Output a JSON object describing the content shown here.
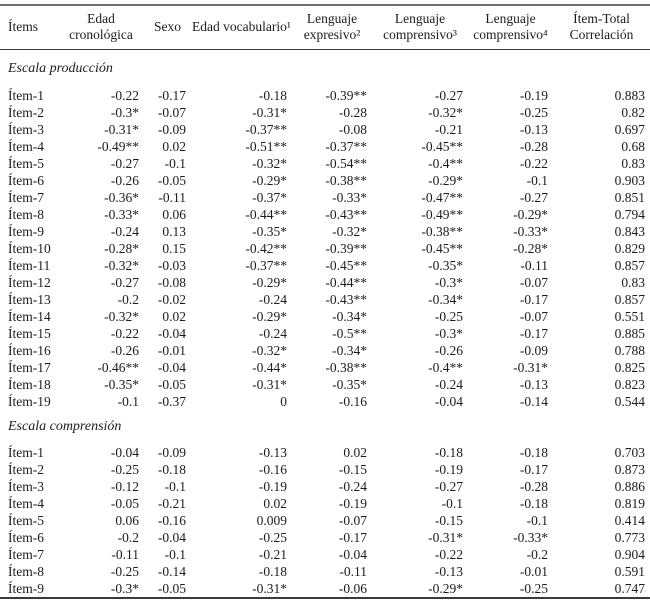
{
  "colors": {
    "text": "#1c1c1c",
    "top_rule": "#6e6e6e",
    "rule": "#3a3a3a",
    "background": "#ffffff"
  },
  "table": {
    "columns": [
      "Ítems",
      "Edad cronológica",
      "Sexo",
      "Edad vocabulario¹",
      "Lenguaje expresivo²",
      "Lenguaje comprensivo³",
      "Lenguaje comprensivo⁴",
      "Ítem-Total Correlación"
    ],
    "sections": [
      {
        "title": "Escala producción",
        "rows": [
          {
            "item": "Ítem-1",
            "values": [
              "-0.22",
              "-0.17",
              "-0.18",
              "-0.39**",
              "-0.27",
              "-0.19",
              "0.883"
            ]
          },
          {
            "item": "Ítem-2",
            "values": [
              "-0.3*",
              "-0.07",
              "-0.31*",
              "-0.28",
              "-0.32*",
              "-0.25",
              "0.82"
            ]
          },
          {
            "item": "Ítem-3",
            "values": [
              "-0.31*",
              "-0.09",
              "-0.37**",
              "-0.08",
              "-0.21",
              "-0.13",
              "0.697"
            ]
          },
          {
            "item": "Ítem-4",
            "values": [
              "-0.49**",
              "0.02",
              "-0.51**",
              "-0.37**",
              "-0.45**",
              "-0.28",
              "0.68"
            ]
          },
          {
            "item": "Ítem-5",
            "values": [
              "-0.27",
              "-0.1",
              "-0.32*",
              "-0.54**",
              "-0.4**",
              "-0.22",
              "0.83"
            ]
          },
          {
            "item": "Ítem-6",
            "values": [
              "-0.26",
              "-0.05",
              "-0.29*",
              "-0.38**",
              "-0.29*",
              "-0.1",
              "0.903"
            ]
          },
          {
            "item": "Ítem-7",
            "values": [
              "-0.36*",
              "-0.11",
              "-0.37*",
              "-0.33*",
              "-0.47**",
              "-0.27",
              "0.851"
            ]
          },
          {
            "item": "Ítem-8",
            "values": [
              "-0.33*",
              "0.06",
              "-0.44**",
              "-0.43**",
              "-0.49**",
              "-0.29*",
              "0.794"
            ]
          },
          {
            "item": "Ítem-9",
            "values": [
              "-0.24",
              "0.13",
              "-0.35*",
              "-0.32*",
              "-0.38**",
              "-0.33*",
              "0.843"
            ]
          },
          {
            "item": "Ítem-10",
            "values": [
              "-0.28*",
              "0.15",
              "-0.42**",
              "-0.39**",
              "-0.45**",
              "-0.28*",
              "0.829"
            ]
          },
          {
            "item": "Ítem-11",
            "values": [
              "-0.32*",
              "-0.03",
              "-0.37**",
              "-0.45**",
              "-0.35*",
              "-0.11",
              "0.857"
            ]
          },
          {
            "item": "Ítem-12",
            "values": [
              "-0.27",
              "-0.08",
              "-0.29*",
              "-0.44**",
              "-0.3*",
              "-0.07",
              "0.83"
            ]
          },
          {
            "item": "Ítem-13",
            "values": [
              "-0.2",
              "-0.02",
              "-0.24",
              "-0.43**",
              "-0.34*",
              "-0.17",
              "0.857"
            ]
          },
          {
            "item": "Ítem-14",
            "values": [
              "-0.32*",
              "0.02",
              "-0.29*",
              "-0.34*",
              "-0.25",
              "-0.07",
              "0.551"
            ]
          },
          {
            "item": "Ítem-15",
            "values": [
              "-0.22",
              "-0.04",
              "-0.24",
              "-0.5**",
              "-0.3*",
              "-0.17",
              "0.885"
            ]
          },
          {
            "item": "Ítem-16",
            "values": [
              "-0.26",
              "-0.01",
              "-0.32*",
              "-0.34*",
              "-0.26",
              "-0.09",
              "0.788"
            ]
          },
          {
            "item": "Ítem-17",
            "values": [
              "-0.46**",
              "-0.04",
              "-0.44*",
              "-0.38**",
              "-0.4**",
              "-0.31*",
              "0.825"
            ]
          },
          {
            "item": "Ítem-18",
            "values": [
              "-0.35*",
              "-0.05",
              "-0.31*",
              "-0.35*",
              "-0.24",
              "-0.13",
              "0.823"
            ]
          },
          {
            "item": "Ítem-19",
            "values": [
              "-0.1",
              "-0.37",
              "0",
              "-0.16",
              "-0.04",
              "-0.14",
              "0.544"
            ]
          }
        ]
      },
      {
        "title": "Escala comprensión",
        "rows": [
          {
            "item": "Ítem-1",
            "values": [
              "-0.04",
              "-0.09",
              "-0.13",
              "0.02",
              "-0.18",
              "-0.18",
              "0.703"
            ]
          },
          {
            "item": "Ítem-2",
            "values": [
              "-0.25",
              "-0.18",
              "-0.16",
              "-0.15",
              "-0.19",
              "-0.17",
              "0.873"
            ]
          },
          {
            "item": "Ítem-3",
            "values": [
              "-0.12",
              "-0.1",
              "-0.19",
              "-0.24",
              "-0.27",
              "-0.28",
              "0.886"
            ]
          },
          {
            "item": "Ítem-4",
            "values": [
              "-0.05",
              "-0.21",
              "0.02",
              "-0.19",
              "-0.1",
              "-0.18",
              "0.819"
            ]
          },
          {
            "item": "Ítem-5",
            "values": [
              "0.06",
              "-0.16",
              "0.009",
              "-0.07",
              "-0.15",
              "-0.1",
              "0.414"
            ]
          },
          {
            "item": "Ítem-6",
            "values": [
              "-0.2",
              "-0.04",
              "-0.25",
              "-0.17",
              "-0.31*",
              "-0.33*",
              "0.773"
            ]
          },
          {
            "item": "Ítem-7",
            "values": [
              "-0.11",
              "-0.1",
              "-0.21",
              "-0.04",
              "-0.22",
              "-0.2",
              "0.904"
            ]
          },
          {
            "item": "Ítem-8",
            "values": [
              "-0.25",
              "-0.14",
              "-0.18",
              "-0.11",
              "-0.13",
              "-0.01",
              "0.591"
            ]
          },
          {
            "item": "Ítem-9",
            "values": [
              "-0.3*",
              "-0.05",
              "-0.31*",
              "-0.06",
              "-0.29*",
              "-0.25",
              "0.747"
            ]
          }
        ]
      }
    ]
  }
}
